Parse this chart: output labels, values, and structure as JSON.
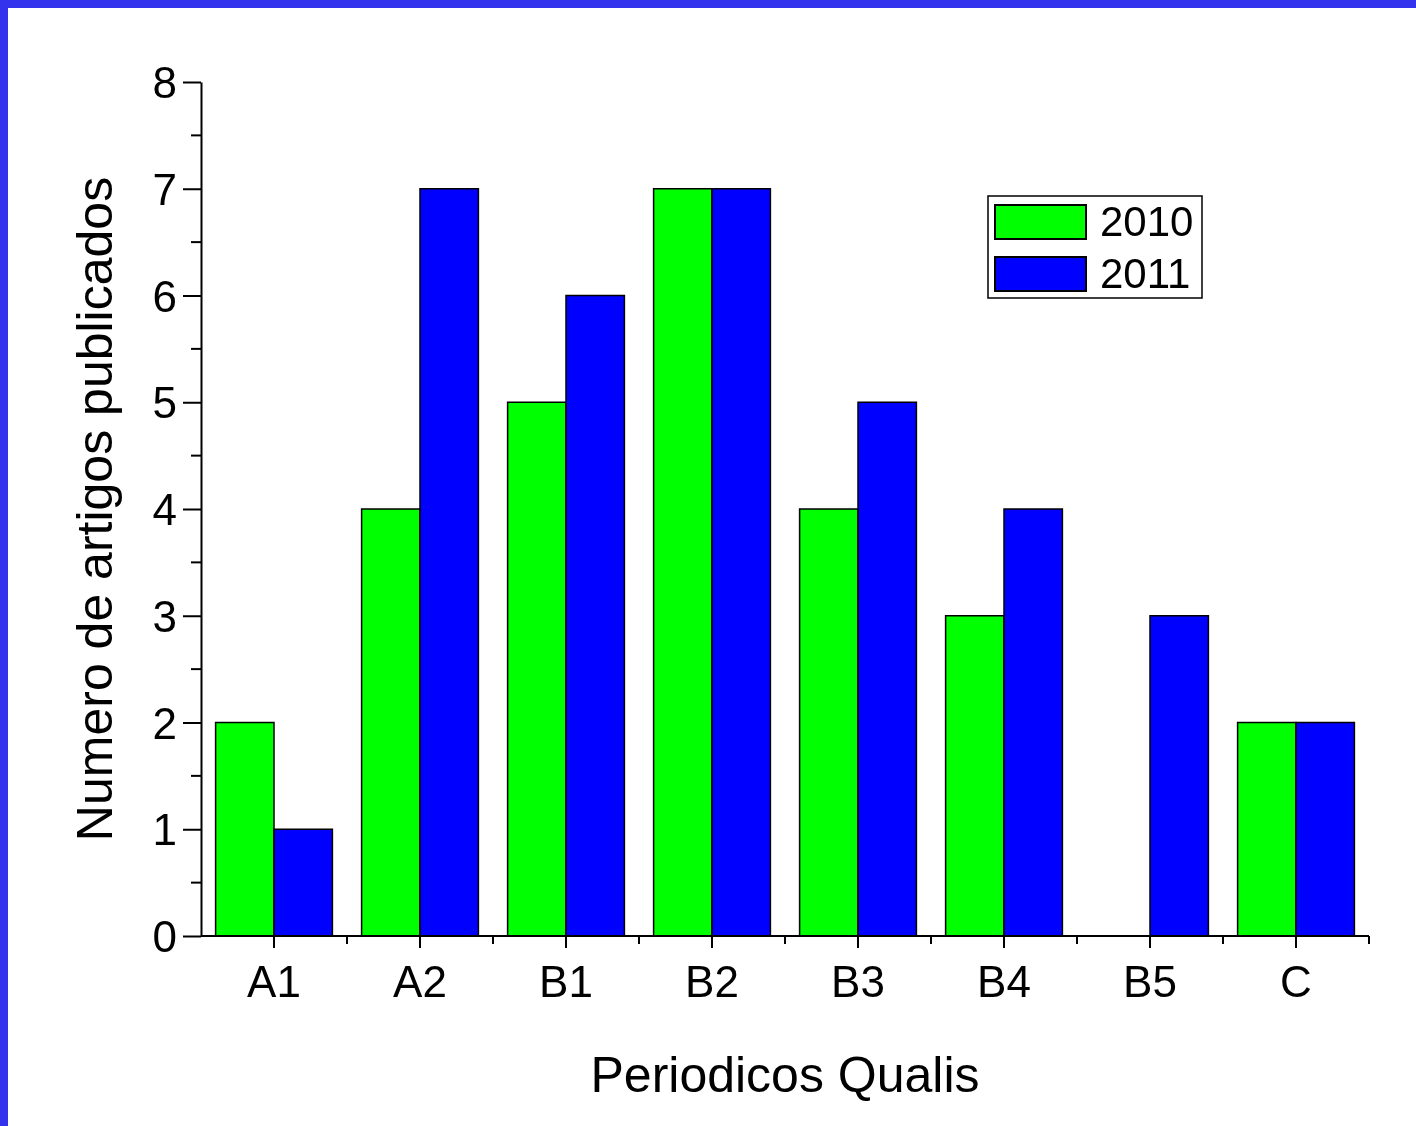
{
  "chart_data": {
    "type": "bar",
    "xlabel": "Periodicos Qualis",
    "ylabel": "Numero de artigos publicados",
    "categories": [
      "A1",
      "A2",
      "B1",
      "B2",
      "B3",
      "B4",
      "B5",
      "C"
    ],
    "series": [
      {
        "name": "2010",
        "color": "#00ff00",
        "values": [
          2,
          4,
          5,
          7,
          4,
          3,
          0,
          2
        ]
      },
      {
        "name": "2011",
        "color": "#0000ff",
        "values": [
          1,
          7,
          6,
          7,
          5,
          4,
          3,
          2
        ]
      }
    ],
    "ylim": [
      0,
      8
    ],
    "yticks": [
      0,
      1,
      2,
      3,
      4,
      5,
      6,
      7,
      8
    ],
    "grid": false,
    "legend": "top right"
  }
}
